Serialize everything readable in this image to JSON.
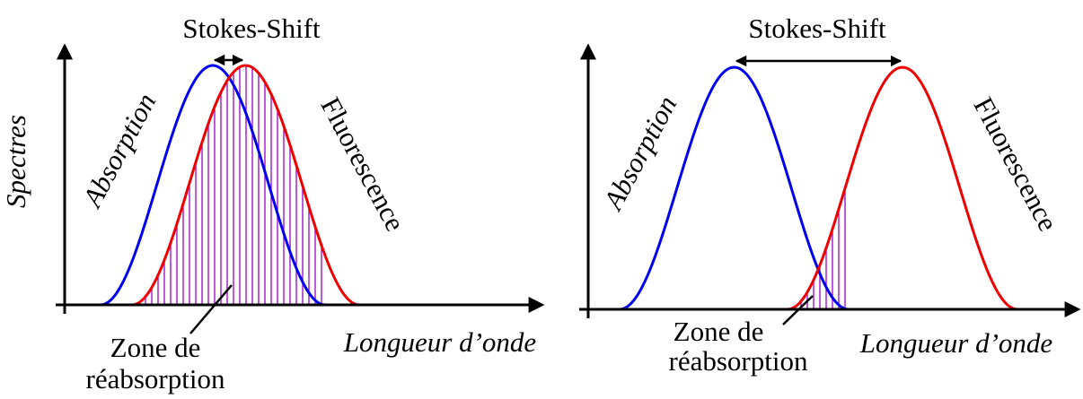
{
  "y_axis_label": "Spectres",
  "panels": [
    {
      "title": "Stokes-Shift",
      "absorption": "Absorption",
      "fluorescence": "Fluorescence",
      "zone": [
        "Zone de",
        "réabsorption"
      ],
      "x_axis_label": "Longueur d’onde"
    },
    {
      "title": "Stokes-Shift",
      "absorption": "Absorption",
      "fluorescence": "Fluorescence",
      "zone": [
        "Zone de",
        "réabsorption"
      ],
      "x_axis_label": "Longueur d’onde"
    }
  ]
}
